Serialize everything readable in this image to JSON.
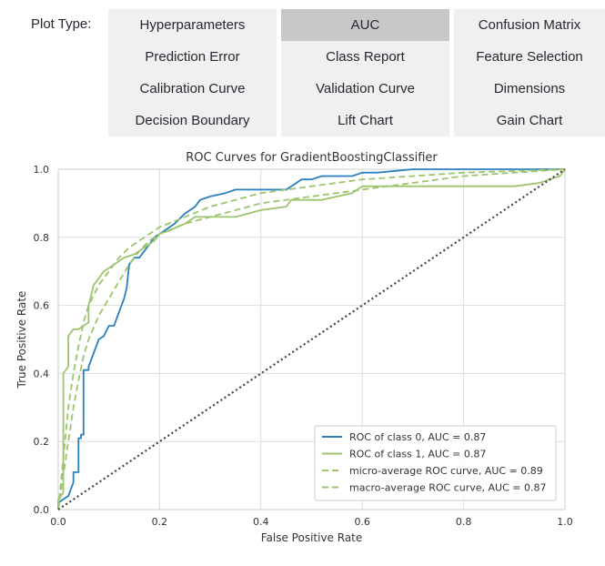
{
  "controls": {
    "label": "Plot Type:",
    "selected": "AUC",
    "buttons": [
      [
        "Hyperparameters",
        "AUC",
        "Confusion Matrix"
      ],
      [
        "Prediction Error",
        "Class Report",
        "Feature Selection"
      ],
      [
        "Calibration Curve",
        "Validation Curve",
        "Dimensions"
      ],
      [
        "Decision Boundary",
        "Lift Chart",
        "Gain Chart"
      ]
    ]
  },
  "chart_data": {
    "type": "line",
    "title": "ROC Curves for GradientBoostingClassifier",
    "xlabel": "False Positive Rate",
    "ylabel": "True Positive Rate",
    "xlim": [
      0,
      1
    ],
    "ylim": [
      0,
      1
    ],
    "xticks": [
      "0.0",
      "0.2",
      "0.4",
      "0.6",
      "0.8",
      "1.0"
    ],
    "yticks": [
      "0.0",
      "0.2",
      "0.4",
      "0.6",
      "0.8",
      "1.0"
    ],
    "grid": true,
    "legend_position": "bottom-right",
    "colors": {
      "class0": "#2a7fbf",
      "green": "#9cc56e",
      "diagonal": "#444444"
    },
    "series": [
      {
        "name": "ROC of class 0, AUC = 0.87",
        "style": "solid",
        "color": "#2a7fbf",
        "x": [
          0.0,
          0.0,
          0.02,
          0.03,
          0.03,
          0.04,
          0.04,
          0.045,
          0.045,
          0.05,
          0.05,
          0.06,
          0.06,
          0.07,
          0.08,
          0.09,
          0.1,
          0.11,
          0.12,
          0.13,
          0.135,
          0.14,
          0.15,
          0.16,
          0.17,
          0.19,
          0.2,
          0.23,
          0.25,
          0.27,
          0.28,
          0.3,
          0.33,
          0.35,
          0.37,
          0.4,
          0.42,
          0.45,
          0.46,
          0.47,
          0.48,
          0.5,
          0.52,
          0.55,
          0.58,
          0.6,
          0.63,
          0.7,
          0.8,
          1.0
        ],
        "y": [
          0.0,
          0.02,
          0.04,
          0.08,
          0.11,
          0.11,
          0.21,
          0.21,
          0.22,
          0.22,
          0.41,
          0.41,
          0.42,
          0.46,
          0.5,
          0.51,
          0.54,
          0.54,
          0.58,
          0.62,
          0.65,
          0.72,
          0.74,
          0.74,
          0.76,
          0.8,
          0.81,
          0.84,
          0.87,
          0.89,
          0.91,
          0.92,
          0.93,
          0.94,
          0.94,
          0.94,
          0.94,
          0.94,
          0.95,
          0.96,
          0.97,
          0.97,
          0.98,
          0.98,
          0.98,
          0.99,
          0.99,
          1.0,
          1.0,
          1.0
        ]
      },
      {
        "name": "ROC of class 1, AUC = 0.87",
        "style": "solid",
        "color": "#9cc56e",
        "x": [
          0.0,
          0.0,
          0.01,
          0.01,
          0.02,
          0.02,
          0.03,
          0.04,
          0.05,
          0.06,
          0.06,
          0.07,
          0.08,
          0.09,
          0.1,
          0.11,
          0.12,
          0.13,
          0.15,
          0.17,
          0.19,
          0.2,
          0.22,
          0.25,
          0.27,
          0.3,
          0.35,
          0.4,
          0.45,
          0.46,
          0.5,
          0.52,
          0.55,
          0.58,
          0.6,
          0.8,
          0.85,
          0.9,
          0.95,
          0.97,
          0.99,
          1.0
        ],
        "y": [
          0.0,
          0.03,
          0.05,
          0.4,
          0.42,
          0.51,
          0.53,
          0.53,
          0.54,
          0.55,
          0.6,
          0.66,
          0.68,
          0.7,
          0.71,
          0.72,
          0.73,
          0.74,
          0.75,
          0.77,
          0.79,
          0.81,
          0.82,
          0.84,
          0.86,
          0.86,
          0.86,
          0.88,
          0.89,
          0.91,
          0.91,
          0.91,
          0.92,
          0.93,
          0.95,
          0.95,
          0.95,
          0.95,
          0.96,
          0.97,
          0.98,
          1.0
        ]
      },
      {
        "name": "micro-average ROC curve, AUC = 0.89",
        "style": "dashed",
        "color": "#9cc56e",
        "x": [
          0.0,
          0.01,
          0.02,
          0.03,
          0.04,
          0.05,
          0.06,
          0.08,
          0.1,
          0.12,
          0.14,
          0.16,
          0.18,
          0.2,
          0.25,
          0.3,
          0.35,
          0.4,
          0.5,
          0.6,
          0.7,
          0.8,
          0.9,
          1.0
        ],
        "y": [
          0.0,
          0.15,
          0.3,
          0.4,
          0.48,
          0.55,
          0.6,
          0.66,
          0.7,
          0.74,
          0.77,
          0.79,
          0.81,
          0.83,
          0.86,
          0.89,
          0.91,
          0.93,
          0.95,
          0.97,
          0.98,
          0.99,
          0.995,
          1.0
        ]
      },
      {
        "name": "macro-average ROC curve, AUC = 0.87",
        "style": "dashed",
        "color": "#9cc56e",
        "x": [
          0.0,
          0.01,
          0.02,
          0.03,
          0.04,
          0.05,
          0.06,
          0.08,
          0.1,
          0.12,
          0.14,
          0.16,
          0.18,
          0.2,
          0.25,
          0.3,
          0.35,
          0.4,
          0.5,
          0.6,
          0.7,
          0.8,
          0.9,
          1.0
        ],
        "y": [
          0.0,
          0.1,
          0.2,
          0.3,
          0.38,
          0.45,
          0.5,
          0.57,
          0.62,
          0.67,
          0.72,
          0.76,
          0.79,
          0.81,
          0.84,
          0.86,
          0.88,
          0.9,
          0.92,
          0.94,
          0.96,
          0.98,
          0.99,
          1.0
        ]
      },
      {
        "name": "chance",
        "style": "dotted",
        "color": "#444444",
        "legend": false,
        "x": [
          0,
          1
        ],
        "y": [
          0,
          1
        ]
      }
    ]
  }
}
